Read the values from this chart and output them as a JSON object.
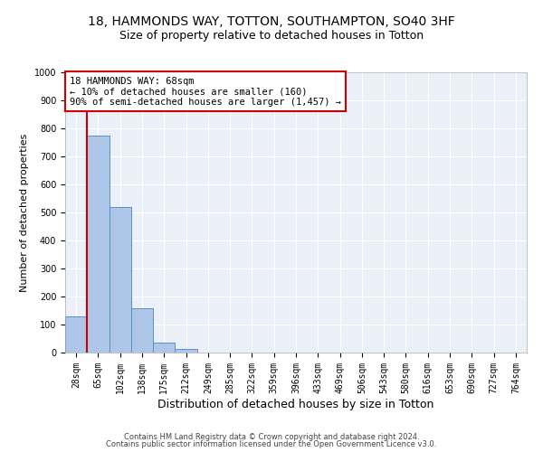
{
  "title1": "18, HAMMONDS WAY, TOTTON, SOUTHAMPTON, SO40 3HF",
  "title2": "Size of property relative to detached houses in Totton",
  "xlabel": "Distribution of detached houses by size in Totton",
  "ylabel": "Number of detached properties",
  "bar_labels": [
    "28sqm",
    "65sqm",
    "102sqm",
    "138sqm",
    "175sqm",
    "212sqm",
    "249sqm",
    "285sqm",
    "322sqm",
    "359sqm",
    "396sqm",
    "433sqm",
    "469sqm",
    "506sqm",
    "543sqm",
    "580sqm",
    "616sqm",
    "653sqm",
    "690sqm",
    "727sqm",
    "764sqm"
  ],
  "bar_values": [
    130,
    775,
    520,
    157,
    37,
    12,
    0,
    0,
    0,
    0,
    0,
    0,
    0,
    0,
    0,
    0,
    0,
    0,
    0,
    0,
    0
  ],
  "bar_color": "#aec6e8",
  "bar_edge_color": "#5a8fc2",
  "vline_color": "#cc0000",
  "annotation_text": "18 HAMMONDS WAY: 68sqm\n← 10% of detached houses are smaller (160)\n90% of semi-detached houses are larger (1,457) →",
  "annotation_box_color": "#cc0000",
  "ylim": [
    0,
    1000
  ],
  "yticks": [
    0,
    100,
    200,
    300,
    400,
    500,
    600,
    700,
    800,
    900,
    1000
  ],
  "footer1": "Contains HM Land Registry data © Crown copyright and database right 2024.",
  "footer2": "Contains public sector information licensed under the Open Government Licence v3.0.",
  "bg_color": "#ffffff",
  "plot_bg_color": "#eaeff8",
  "grid_color": "#ffffff",
  "title1_fontsize": 10,
  "title2_fontsize": 9,
  "tick_fontsize": 7,
  "ylabel_fontsize": 8,
  "xlabel_fontsize": 9,
  "footer_fontsize": 6,
  "annotation_fontsize": 7.5
}
